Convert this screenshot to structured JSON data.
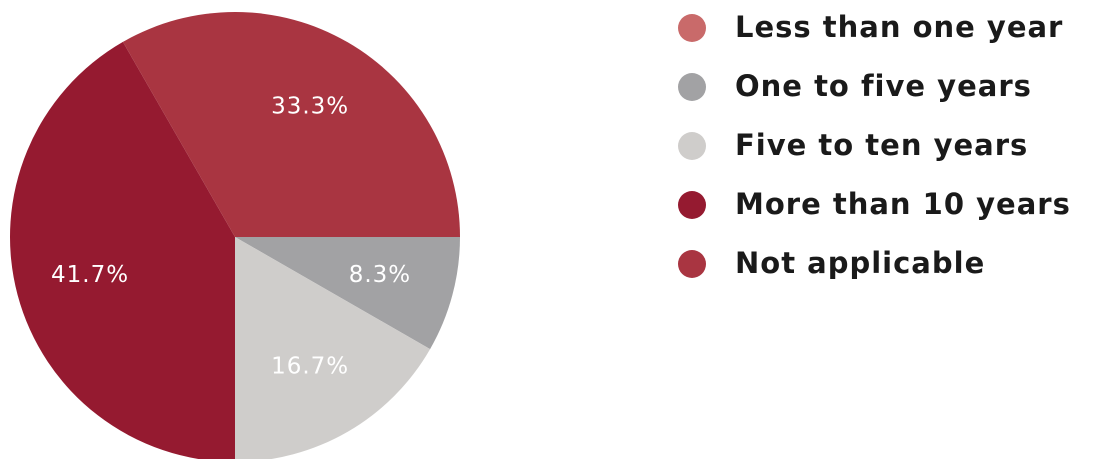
{
  "chart_data": {
    "type": "pie",
    "categories": [
      "Less than one year",
      "One to five years",
      "Five to ten years",
      "More than 10 years",
      "Not applicable"
    ],
    "values": [
      0,
      8.3,
      16.7,
      41.7,
      33.3
    ],
    "value_labels": [
      null,
      "8.3%",
      "16.7%",
      "41.7%",
      "33.3%"
    ],
    "colors": [
      "#c96a6a",
      "#a2a2a4",
      "#cfcdcb",
      "#951a30",
      "#a93541"
    ],
    "legend": "right"
  }
}
